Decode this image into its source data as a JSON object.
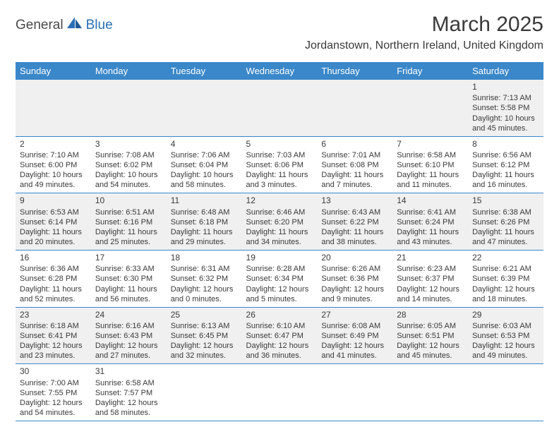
{
  "logo": {
    "text1": "General",
    "text2": "Blue"
  },
  "title": "March 2025",
  "location": "Jordanstown, Northern Ireland, United Kingdom",
  "colors": {
    "header_bg": "#3a87c9",
    "header_fg": "#ffffff",
    "row_alt_bg": "#f0f0f0",
    "border": "#3a87c9",
    "text": "#3a3a3a",
    "logo_blue": "#2a6fb5"
  },
  "weekdays": [
    "Sunday",
    "Monday",
    "Tuesday",
    "Wednesday",
    "Thursday",
    "Friday",
    "Saturday"
  ],
  "weeks": [
    [
      null,
      null,
      null,
      null,
      null,
      null,
      {
        "n": "1",
        "sr": "Sunrise: 7:13 AM",
        "ss": "Sunset: 5:58 PM",
        "d1": "Daylight: 10 hours",
        "d2": "and 45 minutes."
      }
    ],
    [
      {
        "n": "2",
        "sr": "Sunrise: 7:10 AM",
        "ss": "Sunset: 6:00 PM",
        "d1": "Daylight: 10 hours",
        "d2": "and 49 minutes."
      },
      {
        "n": "3",
        "sr": "Sunrise: 7:08 AM",
        "ss": "Sunset: 6:02 PM",
        "d1": "Daylight: 10 hours",
        "d2": "and 54 minutes."
      },
      {
        "n": "4",
        "sr": "Sunrise: 7:06 AM",
        "ss": "Sunset: 6:04 PM",
        "d1": "Daylight: 10 hours",
        "d2": "and 58 minutes."
      },
      {
        "n": "5",
        "sr": "Sunrise: 7:03 AM",
        "ss": "Sunset: 6:06 PM",
        "d1": "Daylight: 11 hours",
        "d2": "and 3 minutes."
      },
      {
        "n": "6",
        "sr": "Sunrise: 7:01 AM",
        "ss": "Sunset: 6:08 PM",
        "d1": "Daylight: 11 hours",
        "d2": "and 7 minutes."
      },
      {
        "n": "7",
        "sr": "Sunrise: 6:58 AM",
        "ss": "Sunset: 6:10 PM",
        "d1": "Daylight: 11 hours",
        "d2": "and 11 minutes."
      },
      {
        "n": "8",
        "sr": "Sunrise: 6:56 AM",
        "ss": "Sunset: 6:12 PM",
        "d1": "Daylight: 11 hours",
        "d2": "and 16 minutes."
      }
    ],
    [
      {
        "n": "9",
        "sr": "Sunrise: 6:53 AM",
        "ss": "Sunset: 6:14 PM",
        "d1": "Daylight: 11 hours",
        "d2": "and 20 minutes."
      },
      {
        "n": "10",
        "sr": "Sunrise: 6:51 AM",
        "ss": "Sunset: 6:16 PM",
        "d1": "Daylight: 11 hours",
        "d2": "and 25 minutes."
      },
      {
        "n": "11",
        "sr": "Sunrise: 6:48 AM",
        "ss": "Sunset: 6:18 PM",
        "d1": "Daylight: 11 hours",
        "d2": "and 29 minutes."
      },
      {
        "n": "12",
        "sr": "Sunrise: 6:46 AM",
        "ss": "Sunset: 6:20 PM",
        "d1": "Daylight: 11 hours",
        "d2": "and 34 minutes."
      },
      {
        "n": "13",
        "sr": "Sunrise: 6:43 AM",
        "ss": "Sunset: 6:22 PM",
        "d1": "Daylight: 11 hours",
        "d2": "and 38 minutes."
      },
      {
        "n": "14",
        "sr": "Sunrise: 6:41 AM",
        "ss": "Sunset: 6:24 PM",
        "d1": "Daylight: 11 hours",
        "d2": "and 43 minutes."
      },
      {
        "n": "15",
        "sr": "Sunrise: 6:38 AM",
        "ss": "Sunset: 6:26 PM",
        "d1": "Daylight: 11 hours",
        "d2": "and 47 minutes."
      }
    ],
    [
      {
        "n": "16",
        "sr": "Sunrise: 6:36 AM",
        "ss": "Sunset: 6:28 PM",
        "d1": "Daylight: 11 hours",
        "d2": "and 52 minutes."
      },
      {
        "n": "17",
        "sr": "Sunrise: 6:33 AM",
        "ss": "Sunset: 6:30 PM",
        "d1": "Daylight: 11 hours",
        "d2": "and 56 minutes."
      },
      {
        "n": "18",
        "sr": "Sunrise: 6:31 AM",
        "ss": "Sunset: 6:32 PM",
        "d1": "Daylight: 12 hours",
        "d2": "and 0 minutes."
      },
      {
        "n": "19",
        "sr": "Sunrise: 6:28 AM",
        "ss": "Sunset: 6:34 PM",
        "d1": "Daylight: 12 hours",
        "d2": "and 5 minutes."
      },
      {
        "n": "20",
        "sr": "Sunrise: 6:26 AM",
        "ss": "Sunset: 6:36 PM",
        "d1": "Daylight: 12 hours",
        "d2": "and 9 minutes."
      },
      {
        "n": "21",
        "sr": "Sunrise: 6:23 AM",
        "ss": "Sunset: 6:37 PM",
        "d1": "Daylight: 12 hours",
        "d2": "and 14 minutes."
      },
      {
        "n": "22",
        "sr": "Sunrise: 6:21 AM",
        "ss": "Sunset: 6:39 PM",
        "d1": "Daylight: 12 hours",
        "d2": "and 18 minutes."
      }
    ],
    [
      {
        "n": "23",
        "sr": "Sunrise: 6:18 AM",
        "ss": "Sunset: 6:41 PM",
        "d1": "Daylight: 12 hours",
        "d2": "and 23 minutes."
      },
      {
        "n": "24",
        "sr": "Sunrise: 6:16 AM",
        "ss": "Sunset: 6:43 PM",
        "d1": "Daylight: 12 hours",
        "d2": "and 27 minutes."
      },
      {
        "n": "25",
        "sr": "Sunrise: 6:13 AM",
        "ss": "Sunset: 6:45 PM",
        "d1": "Daylight: 12 hours",
        "d2": "and 32 minutes."
      },
      {
        "n": "26",
        "sr": "Sunrise: 6:10 AM",
        "ss": "Sunset: 6:47 PM",
        "d1": "Daylight: 12 hours",
        "d2": "and 36 minutes."
      },
      {
        "n": "27",
        "sr": "Sunrise: 6:08 AM",
        "ss": "Sunset: 6:49 PM",
        "d1": "Daylight: 12 hours",
        "d2": "and 41 minutes."
      },
      {
        "n": "28",
        "sr": "Sunrise: 6:05 AM",
        "ss": "Sunset: 6:51 PM",
        "d1": "Daylight: 12 hours",
        "d2": "and 45 minutes."
      },
      {
        "n": "29",
        "sr": "Sunrise: 6:03 AM",
        "ss": "Sunset: 6:53 PM",
        "d1": "Daylight: 12 hours",
        "d2": "and 49 minutes."
      }
    ],
    [
      {
        "n": "30",
        "sr": "Sunrise: 7:00 AM",
        "ss": "Sunset: 7:55 PM",
        "d1": "Daylight: 12 hours",
        "d2": "and 54 minutes."
      },
      {
        "n": "31",
        "sr": "Sunrise: 6:58 AM",
        "ss": "Sunset: 7:57 PM",
        "d1": "Daylight: 12 hours",
        "d2": "and 58 minutes."
      },
      null,
      null,
      null,
      null,
      null
    ]
  ]
}
